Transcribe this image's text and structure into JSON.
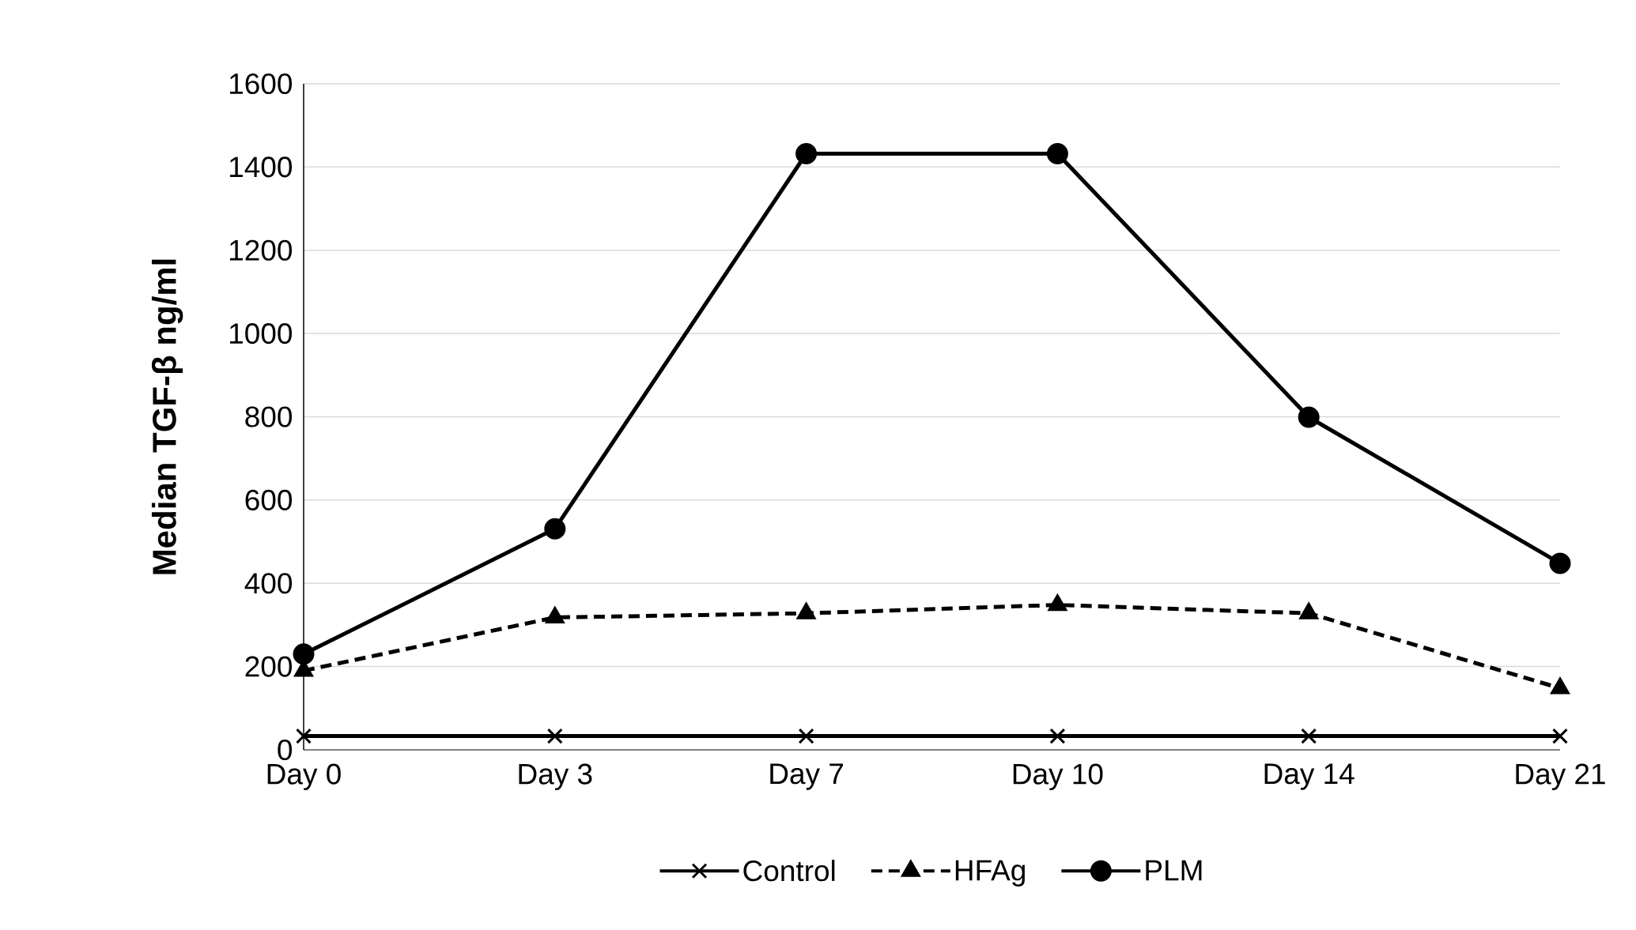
{
  "chart_data": {
    "type": "line",
    "ylabel": "Median TGF-β ng/ml",
    "categories": [
      "Day 0",
      "Day 3",
      "Day 7",
      "Day 10",
      "Day 14",
      "Day 21"
    ],
    "ylim": [
      0,
      1600
    ],
    "yticks": [
      0,
      200,
      400,
      600,
      800,
      1000,
      1200,
      1400,
      1600
    ],
    "grid": "y",
    "legend": "bottom",
    "series": [
      {
        "name": "Control",
        "color": "#000000",
        "marker": "cross",
        "line_style": "solid",
        "values": [
          33,
          33,
          33,
          33,
          33,
          33
        ]
      },
      {
        "name": "HFAg",
        "color": "#000000",
        "marker": "triangle",
        "line_style": "dashed",
        "values": [
          190,
          318,
          328,
          348,
          328,
          148
        ]
      },
      {
        "name": "PLM",
        "color": "#000000",
        "marker": "circle",
        "line_style": "solid",
        "values": [
          230,
          531,
          1432,
          1432,
          799,
          448
        ]
      }
    ]
  }
}
